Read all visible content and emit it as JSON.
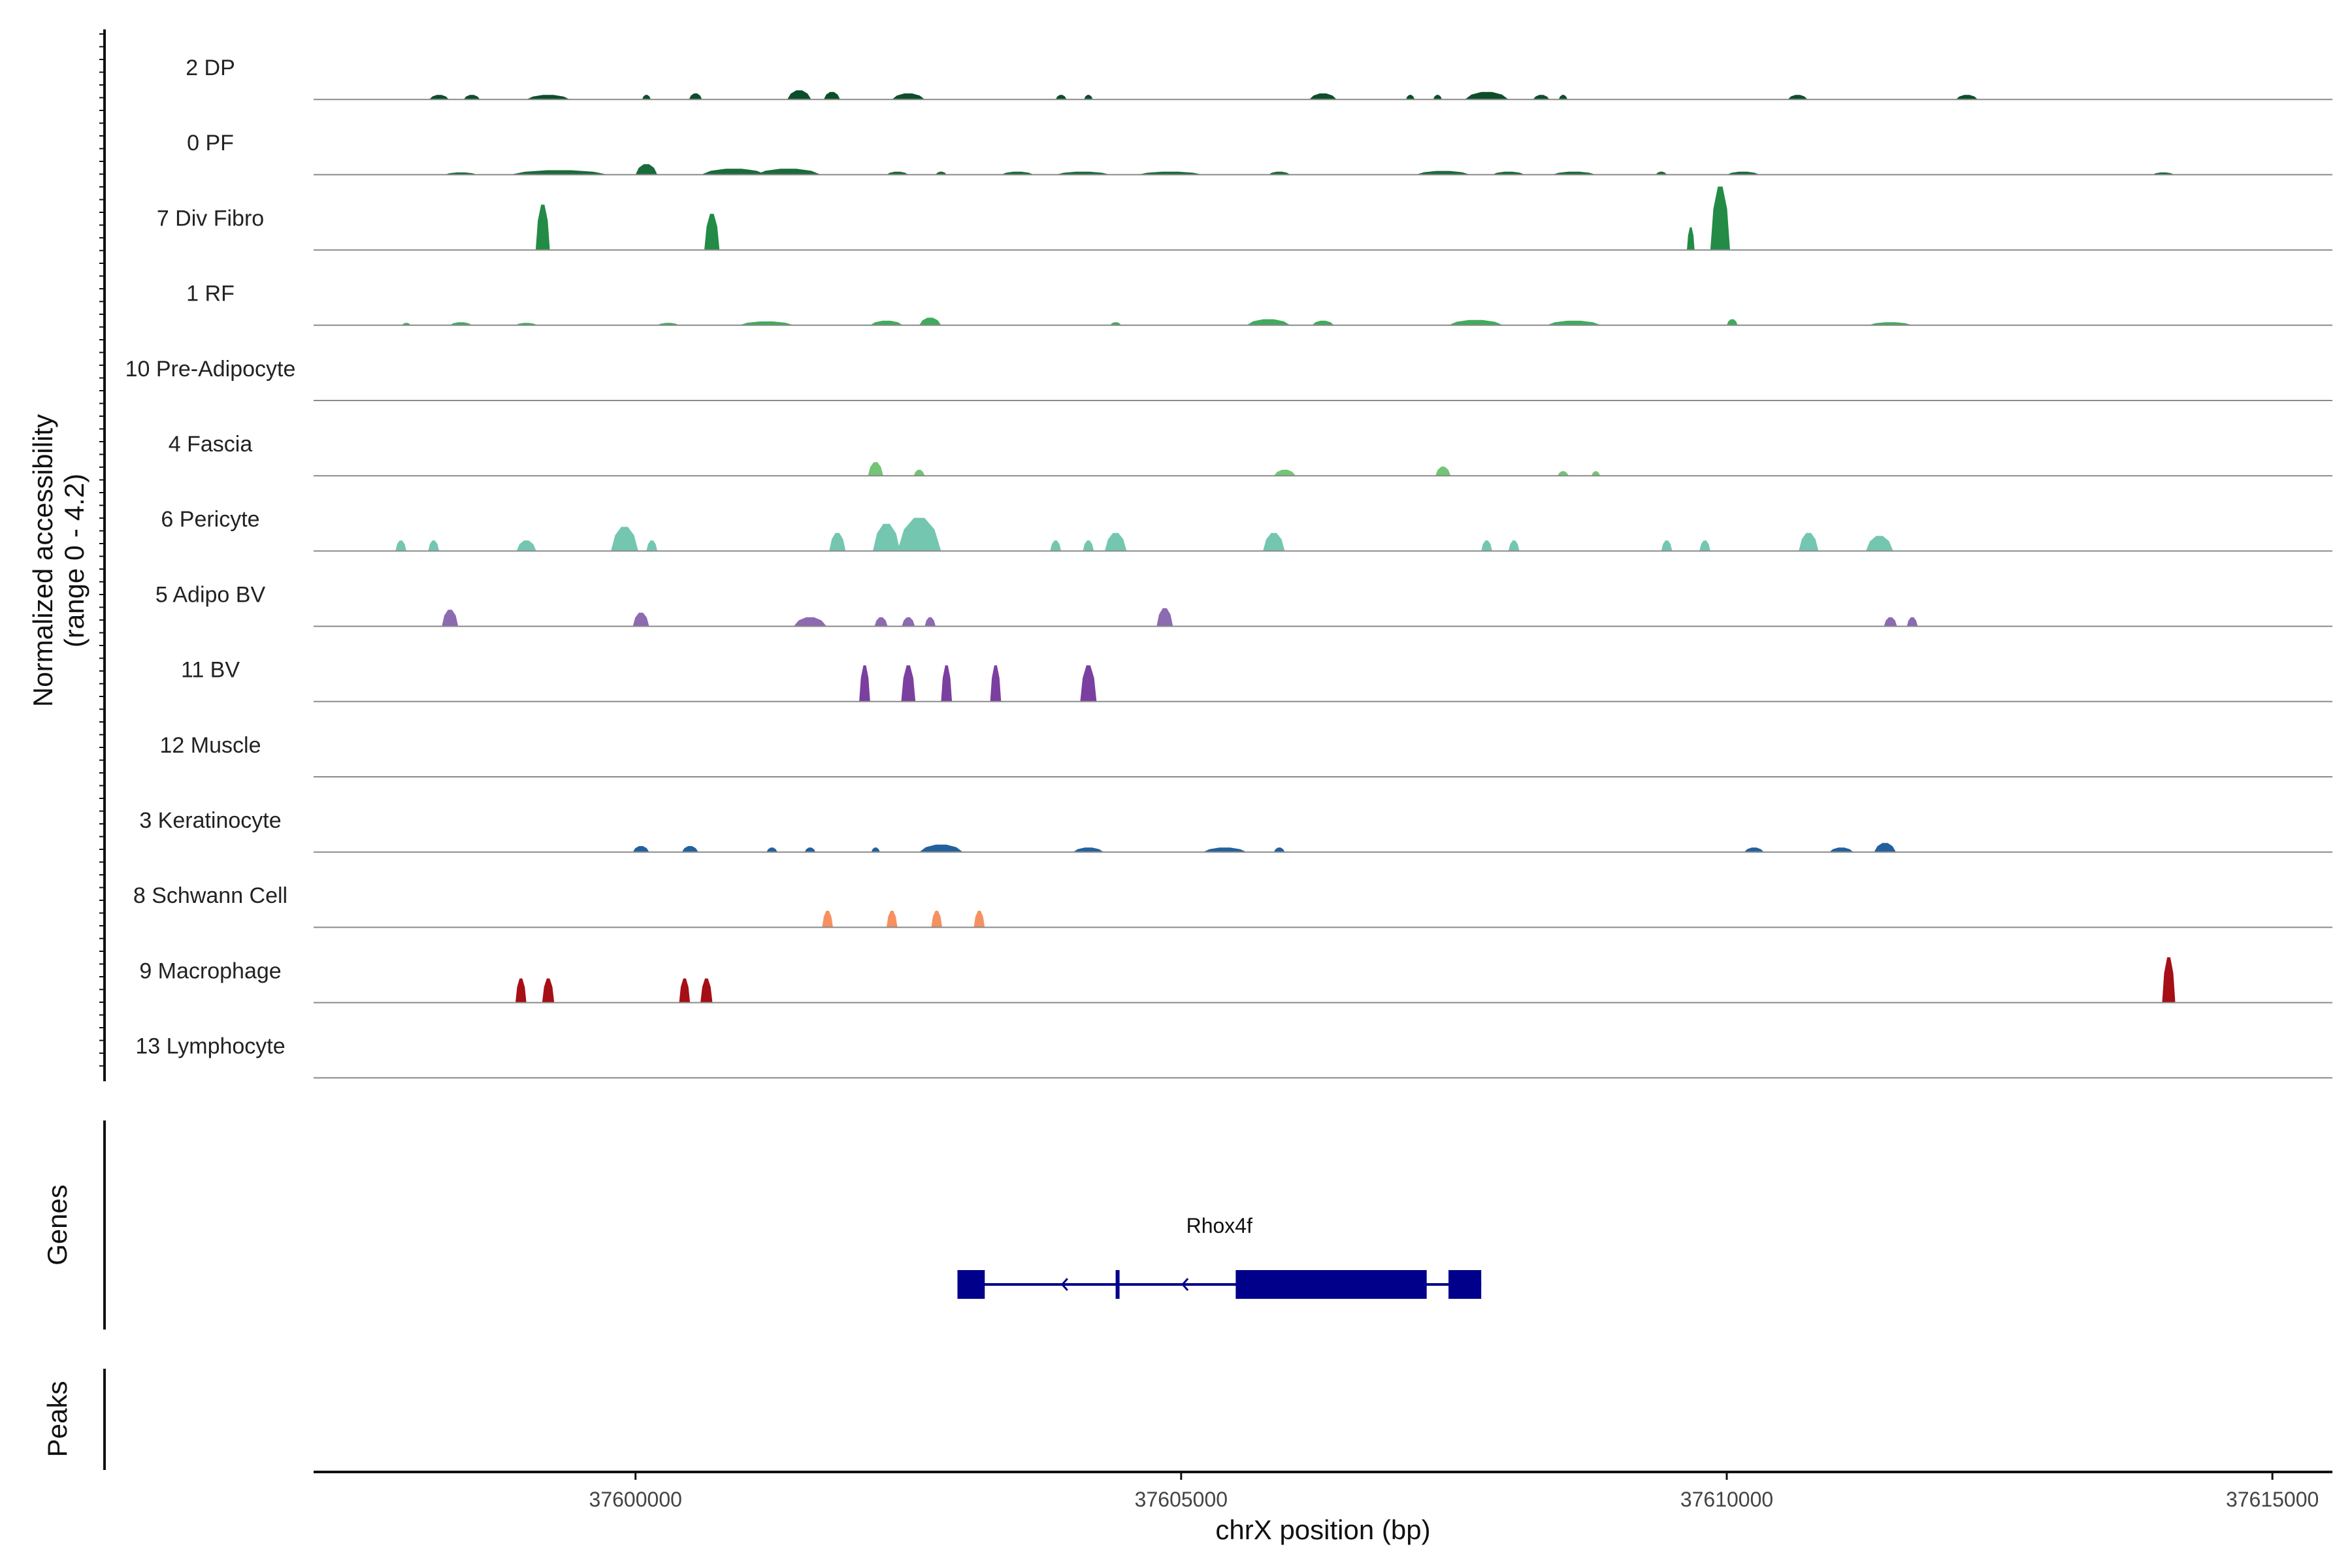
{
  "chart_data": {
    "type": "area",
    "title": "",
    "ylabel_line1": "Normalized accessibility",
    "ylabel_line2": "(range 0 - 4.2)",
    "xlabel": "chrX position (bp)",
    "xlim": [
      37597050,
      37615550
    ],
    "x_ticks": [
      37600000,
      37605000,
      37610000,
      37615000
    ],
    "x_tick_labels": [
      "37600000",
      "37605000",
      "37610000",
      "37615000"
    ],
    "y_range": [
      0,
      4.2
    ],
    "section_labels": {
      "genes": "Genes",
      "peaks": "Peaks"
    },
    "tracks": [
      {
        "name": "2 DP",
        "color": "#0b4f2a",
        "peaks": [
          [
            37598200,
            0.3,
            180
          ],
          [
            37598500,
            0.3,
            150
          ],
          [
            37599200,
            0.3,
            400
          ],
          [
            37600100,
            0.3,
            80
          ],
          [
            37600550,
            0.4,
            120
          ],
          [
            37601500,
            0.6,
            220
          ],
          [
            37601800,
            0.5,
            150
          ],
          [
            37602500,
            0.4,
            300
          ],
          [
            37603900,
            0.3,
            100
          ],
          [
            37604150,
            0.3,
            80
          ],
          [
            37606300,
            0.4,
            250
          ],
          [
            37607100,
            0.3,
            80
          ],
          [
            37607350,
            0.3,
            80
          ],
          [
            37607800,
            0.5,
            400
          ],
          [
            37608300,
            0.3,
            150
          ],
          [
            37608500,
            0.3,
            80
          ],
          [
            37610650,
            0.3,
            180
          ],
          [
            37612200,
            0.3,
            200
          ]
        ]
      },
      {
        "name": "0 PF",
        "color": "#1a6b3a",
        "peaks": [
          [
            37598400,
            0.15,
            300
          ],
          [
            37599300,
            0.3,
            900
          ],
          [
            37600100,
            0.7,
            200
          ],
          [
            37600900,
            0.4,
            600
          ],
          [
            37601400,
            0.4,
            600
          ],
          [
            37602400,
            0.2,
            200
          ],
          [
            37602800,
            0.2,
            100
          ],
          [
            37603500,
            0.2,
            300
          ],
          [
            37604100,
            0.2,
            500
          ],
          [
            37604900,
            0.2,
            600
          ],
          [
            37605900,
            0.2,
            200
          ],
          [
            37607400,
            0.25,
            500
          ],
          [
            37608000,
            0.2,
            300
          ],
          [
            37608600,
            0.2,
            400
          ],
          [
            37609400,
            0.2,
            100
          ],
          [
            37610150,
            0.2,
            300
          ],
          [
            37614000,
            0.15,
            200
          ]
        ]
      },
      {
        "name": "7 Div Fibro",
        "color": "#238b45",
        "peaks": [
          [
            37599150,
            3.0,
            130
          ],
          [
            37600700,
            2.4,
            140
          ],
          [
            37609670,
            1.5,
            70
          ],
          [
            37609940,
            4.2,
            180
          ]
        ]
      },
      {
        "name": "1 RF",
        "color": "#41ab5d",
        "peaks": [
          [
            37597900,
            0.15,
            80
          ],
          [
            37598400,
            0.2,
            200
          ],
          [
            37599000,
            0.15,
            200
          ],
          [
            37600300,
            0.15,
            200
          ],
          [
            37601200,
            0.25,
            500
          ],
          [
            37602300,
            0.3,
            300
          ],
          [
            37602700,
            0.5,
            200
          ],
          [
            37604400,
            0.2,
            100
          ],
          [
            37605800,
            0.4,
            400
          ],
          [
            37606300,
            0.3,
            200
          ],
          [
            37607700,
            0.35,
            500
          ],
          [
            37608600,
            0.3,
            500
          ],
          [
            37610050,
            0.4,
            100
          ],
          [
            37611500,
            0.2,
            400
          ]
        ]
      },
      {
        "name": "10 Pre-Adipocyte",
        "color": "#74c476",
        "peaks": []
      },
      {
        "name": "4 Fascia",
        "color": "#74c476",
        "peaks": [
          [
            37602200,
            0.9,
            140
          ],
          [
            37602600,
            0.4,
            100
          ],
          [
            37605950,
            0.4,
            200
          ],
          [
            37607400,
            0.6,
            140
          ],
          [
            37608500,
            0.3,
            100
          ],
          [
            37608800,
            0.3,
            80
          ]
        ]
      },
      {
        "name": "6 Pericyte",
        "color": "#74c6b1",
        "peaks": [
          [
            37597850,
            0.7,
            100
          ],
          [
            37598150,
            0.7,
            100
          ],
          [
            37599000,
            0.7,
            180
          ],
          [
            37599900,
            1.6,
            250
          ],
          [
            37600150,
            0.7,
            100
          ],
          [
            37601850,
            1.2,
            150
          ],
          [
            37602300,
            1.8,
            250
          ],
          [
            37602600,
            2.2,
            400
          ],
          [
            37603850,
            0.7,
            100
          ],
          [
            37604150,
            0.7,
            100
          ],
          [
            37604400,
            1.2,
            200
          ],
          [
            37605850,
            1.2,
            200
          ],
          [
            37607800,
            0.7,
            100
          ],
          [
            37608050,
            0.7,
            100
          ],
          [
            37609450,
            0.7,
            100
          ],
          [
            37609800,
            0.7,
            100
          ],
          [
            37610750,
            1.2,
            180
          ],
          [
            37611400,
            1.0,
            250
          ]
        ]
      },
      {
        "name": "5 Adipo BV",
        "color": "#8c6bb1",
        "peaks": [
          [
            37598300,
            1.1,
            150
          ],
          [
            37600050,
            0.9,
            150
          ],
          [
            37601600,
            0.6,
            300
          ],
          [
            37602250,
            0.6,
            120
          ],
          [
            37602500,
            0.6,
            120
          ],
          [
            37602700,
            0.6,
            100
          ],
          [
            37604850,
            1.2,
            150
          ],
          [
            37611500,
            0.6,
            120
          ],
          [
            37611700,
            0.6,
            100
          ]
        ]
      },
      {
        "name": "11 BV",
        "color": "#7b3fa0",
        "peaks": [
          [
            37602100,
            2.4,
            100
          ],
          [
            37602500,
            2.4,
            130
          ],
          [
            37602850,
            2.4,
            100
          ],
          [
            37603300,
            2.4,
            100
          ],
          [
            37604150,
            2.4,
            150
          ]
        ]
      },
      {
        "name": "12 Muscle",
        "color": "#2a6ab0",
        "peaks": []
      },
      {
        "name": "3 Keratinocyte",
        "color": "#23619e",
        "peaks": [
          [
            37600050,
            0.4,
            150
          ],
          [
            37600500,
            0.4,
            150
          ],
          [
            37601250,
            0.3,
            100
          ],
          [
            37601600,
            0.3,
            100
          ],
          [
            37602200,
            0.3,
            80
          ],
          [
            37602800,
            0.5,
            400
          ],
          [
            37604150,
            0.3,
            280
          ],
          [
            37605400,
            0.3,
            400
          ],
          [
            37605900,
            0.3,
            100
          ],
          [
            37610250,
            0.3,
            180
          ],
          [
            37611050,
            0.3,
            220
          ],
          [
            37611450,
            0.6,
            200
          ]
        ]
      },
      {
        "name": "8 Schwann Cell",
        "color": "#f79060",
        "peaks": [
          [
            37601760,
            1.1,
            100
          ],
          [
            37602350,
            1.1,
            100
          ],
          [
            37602760,
            1.1,
            100
          ],
          [
            37603150,
            1.1,
            100
          ]
        ]
      },
      {
        "name": "9 Macrophage",
        "color": "#a50f15",
        "peaks": [
          [
            37598950,
            1.6,
            100
          ],
          [
            37599200,
            1.6,
            110
          ],
          [
            37600450,
            1.6,
            100
          ],
          [
            37600650,
            1.6,
            110
          ],
          [
            37614050,
            3.0,
            120
          ]
        ]
      },
      {
        "name": "13 Lymphocyte",
        "color": "#cb181d",
        "peaks": []
      }
    ],
    "gene": {
      "name": "Rhox4f",
      "color": "#00008b",
      "start": 37602950,
      "end": 37607750,
      "strand": "-",
      "exons": [
        [
          37602950,
          37603200
        ],
        [
          37604400,
          37604430
        ],
        [
          37605500,
          37607250
        ],
        [
          37607450,
          37607750
        ]
      ]
    }
  }
}
